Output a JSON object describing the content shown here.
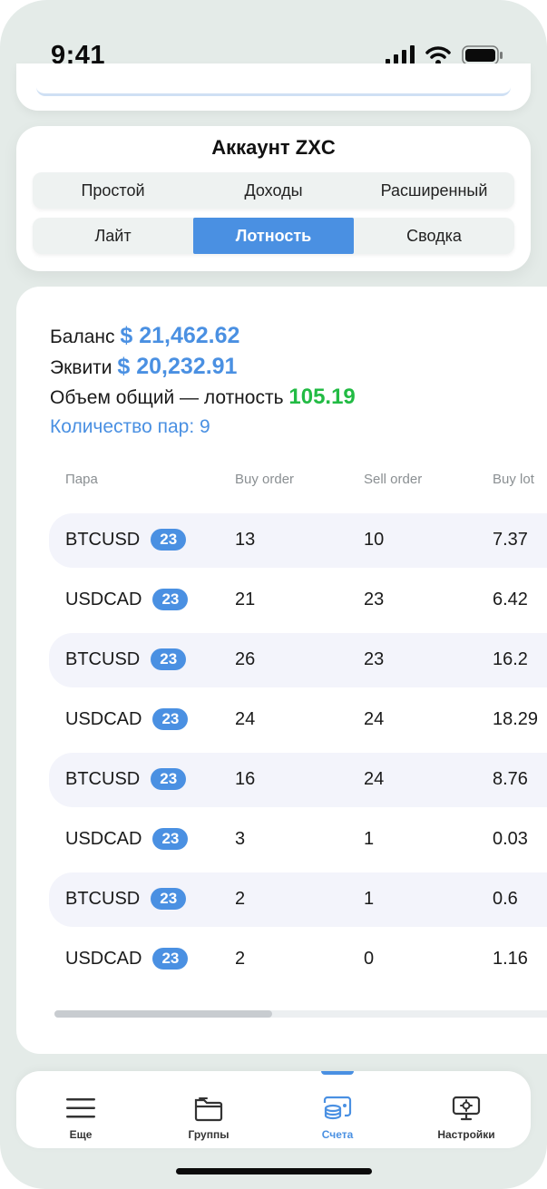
{
  "status_bar": {
    "time": "9:41"
  },
  "account": {
    "title": "Аккаунт ZXC",
    "tabs_row1": [
      "Простой",
      "Доходы",
      "Расширенный"
    ],
    "tabs_row2": [
      "Лайт",
      "Лотность",
      "Сводка"
    ],
    "active_tab": "Лотность"
  },
  "summary": {
    "balance_label": "Баланс",
    "balance_value": "$ 21,462.62",
    "equity_label": "Эквити",
    "equity_value": "$ 20,232.91",
    "volume_label": "Объем общий — лотность",
    "volume_value": "105.19",
    "pairs_count": "Количество пар: 9"
  },
  "table": {
    "headers": {
      "pair": "Пара",
      "buy_order": "Buy order",
      "sell_order": "Sell order",
      "buy_lot": "Buy lot"
    },
    "rows": [
      {
        "pair": "BTCUSD",
        "badge": "23",
        "buy": "13",
        "sell": "10",
        "lot": "7.37"
      },
      {
        "pair": "USDCAD",
        "badge": "23",
        "buy": "21",
        "sell": "23",
        "lot": "6.42"
      },
      {
        "pair": "BTCUSD",
        "badge": "23",
        "buy": "26",
        "sell": "23",
        "lot": "16.2"
      },
      {
        "pair": "USDCAD",
        "badge": "23",
        "buy": "24",
        "sell": "24",
        "lot": "18.29"
      },
      {
        "pair": "BTCUSD",
        "badge": "23",
        "buy": "16",
        "sell": "24",
        "lot": "8.76"
      },
      {
        "pair": "USDCAD",
        "badge": "23",
        "buy": "3",
        "sell": "1",
        "lot": "0.03"
      },
      {
        "pair": "BTCUSD",
        "badge": "23",
        "buy": "2",
        "sell": "1",
        "lot": "0.6"
      },
      {
        "pair": "USDCAD",
        "badge": "23",
        "buy": "2",
        "sell": "0",
        "lot": "1.16"
      }
    ]
  },
  "tabbar": {
    "items": [
      {
        "label": "Еще",
        "icon": "menu-icon"
      },
      {
        "label": "Группы",
        "icon": "folder-icon"
      },
      {
        "label": "Счета",
        "icon": "accounts-icon"
      },
      {
        "label": "Настройки",
        "icon": "settings-monitor-icon"
      }
    ],
    "active": "Счета"
  },
  "colors": {
    "accent": "#4a90e2",
    "positive": "#22bb44",
    "row_shade": "#f3f4fb"
  }
}
